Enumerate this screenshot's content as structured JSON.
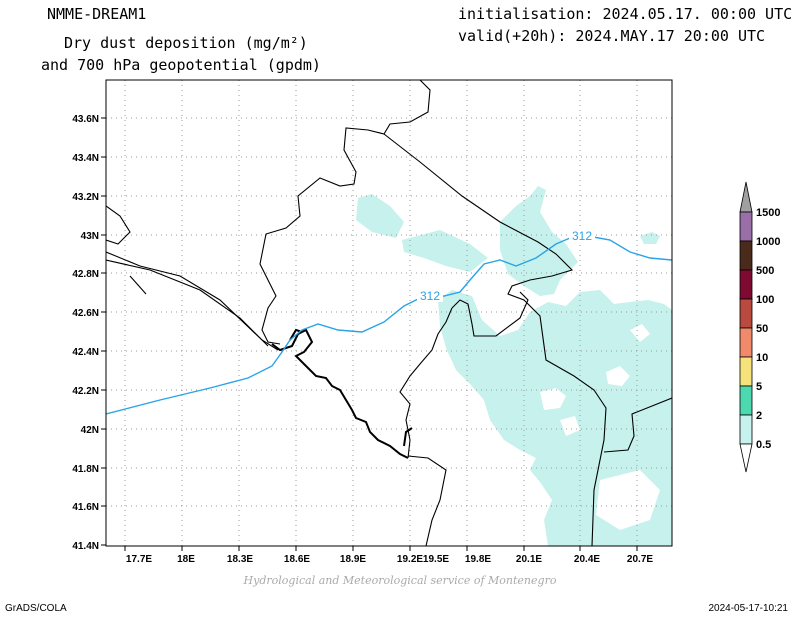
{
  "header": {
    "model": "NMME-DREAM1",
    "product_line1": "Dry dust deposition (mg/m²)",
    "product_line2": "and 700 hPa geopotential (gpdm)",
    "initialisation": "initialisation: 2024.05.17. 00:00 UTC",
    "valid": "valid(+20h): 2024.MAY.17 20:00 UTC"
  },
  "map": {
    "lat_ticks": [
      "43.6N",
      "43.4N",
      "43.2N",
      "43N",
      "42.8N",
      "42.6N",
      "42.4N",
      "42.2N",
      "42N",
      "41.8N",
      "41.6N",
      "41.4N"
    ],
    "lon_ticks": [
      "17.7E",
      "18E",
      "18.3E",
      "18.6E",
      "18.9E",
      "19.2E",
      "19.5E",
      "19.8E",
      "20.1E",
      "20.4E",
      "20.7E"
    ],
    "contours": [
      {
        "label": "312",
        "color": "#2aa3e8"
      },
      {
        "label": "312",
        "color": "#2aa3e8"
      }
    ],
    "dust_fill_color": "#c6f1ec",
    "coastline_color": "#000000",
    "grid": true
  },
  "legend": {
    "labels": [
      "1500",
      "1000",
      "500",
      "100",
      "50",
      "10",
      "5",
      "2",
      "0.5"
    ],
    "colors": [
      "#a0a0a0",
      "#9a6ea6",
      "#4a2a1a",
      "#7e0a32",
      "#b84a40",
      "#f08a6a",
      "#f6e27a",
      "#4ed8b0",
      "#c6f1ec"
    ]
  },
  "footer": {
    "credit": "Hydrological and Meteorological service of Montenegro",
    "software": "GrADS/COLA",
    "timestamp": "2024-05-17-10:21"
  }
}
